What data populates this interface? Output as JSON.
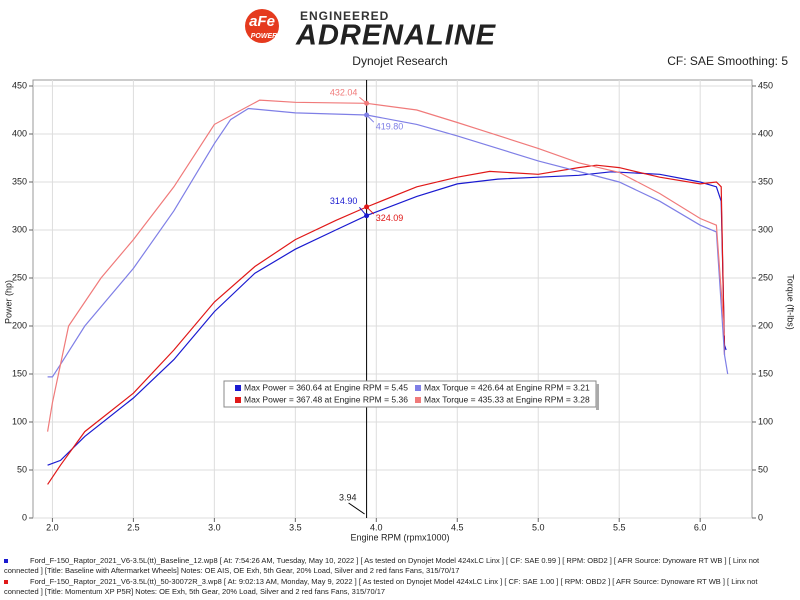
{
  "header": {
    "logo_top": "aFe",
    "logo_bottom": "POWER",
    "tagline": "ENGINEERED",
    "brand": "ADRENALINE",
    "watermark": "DYNOJET"
  },
  "chart_data": {
    "type": "line",
    "title": "Dynojet Research",
    "subtitle": "CF: SAE Smoothing: 5",
    "x_label": "Engine RPM (rpmx1000)",
    "y_label": "Power (hp)",
    "y2_label": "Torque (ft-lbs)",
    "xlim": [
      1.88,
      6.32
    ],
    "xticks": [
      {
        "value": 2,
        "label": "2.0"
      },
      {
        "value": 2.5,
        "label": "2.5"
      },
      {
        "value": 3,
        "label": "3.0"
      },
      {
        "value": 3.5,
        "label": "3.5"
      },
      {
        "value": 4,
        "label": "4.0"
      },
      {
        "value": 4.5,
        "label": "4.5"
      },
      {
        "value": 5,
        "label": "5.0"
      },
      {
        "value": 5.5,
        "label": "5.5"
      },
      {
        "value": 6,
        "label": "6.0"
      }
    ],
    "ylim": [
      0,
      450
    ],
    "yticks": [
      0,
      50,
      100,
      150,
      200,
      250,
      300,
      350,
      400,
      450
    ],
    "y2lim": [
      0,
      450
    ],
    "y2ticks": [
      0,
      50,
      100,
      150,
      200,
      250,
      300,
      350,
      400,
      450
    ],
    "grid": true,
    "series": [
      {
        "color": "#1a1ad0",
        "x": [
          1.97,
          2.05,
          2.2,
          2.5,
          2.75,
          3.0,
          3.25,
          3.5,
          3.75,
          3.94,
          4.25,
          4.5,
          4.75,
          5.0,
          5.25,
          5.45,
          5.75,
          6.0,
          6.1,
          6.13,
          6.15,
          6.16
        ],
        "values": [
          55,
          60,
          85,
          125,
          165,
          215,
          255,
          280,
          300,
          315,
          335,
          348,
          353,
          355,
          357,
          360.6,
          358,
          350,
          345,
          330,
          180,
          175
        ]
      },
      {
        "color": "#e01818",
        "x": [
          1.97,
          2.05,
          2.2,
          2.5,
          2.75,
          3.0,
          3.25,
          3.5,
          3.75,
          3.94,
          4.25,
          4.5,
          4.7,
          5.0,
          5.25,
          5.36,
          5.5,
          5.75,
          6.0,
          6.1,
          6.13,
          6.15
        ],
        "values": [
          35,
          55,
          90,
          130,
          175,
          225,
          262,
          290,
          310,
          324,
          345,
          355,
          361,
          358,
          365,
          367.5,
          365,
          355,
          348,
          350,
          345,
          170
        ]
      },
      {
        "color": "#7f7fe6",
        "axis": "y2",
        "x": [
          1.97,
          2.0,
          2.05,
          2.2,
          2.5,
          2.75,
          3.0,
          3.1,
          3.21,
          3.5,
          3.94,
          4.25,
          4.5,
          5.0,
          5.5,
          5.75,
          6.0,
          6.1,
          6.15,
          6.17
        ],
        "values": [
          147,
          147,
          160,
          200,
          260,
          320,
          390,
          415,
          426.6,
          422,
          419.8,
          410,
          398,
          372,
          350,
          330,
          305,
          298,
          170,
          150
        ]
      },
      {
        "color": "#f07a7a",
        "axis": "y2",
        "x": [
          1.97,
          2.0,
          2.1,
          2.3,
          2.5,
          2.75,
          3.0,
          3.28,
          3.5,
          3.94,
          4.25,
          4.5,
          5.0,
          5.25,
          5.5,
          5.75,
          6.0,
          6.1,
          6.15
        ],
        "values": [
          90,
          120,
          200,
          250,
          290,
          345,
          410,
          435.3,
          433,
          432,
          425,
          412,
          385,
          370,
          360,
          338,
          312,
          305,
          190
        ]
      }
    ],
    "cursor": {
      "x": 3.94,
      "labels": [
        {
          "series": 0,
          "value": 314.9,
          "label": "314.90"
        },
        {
          "series": 1,
          "value": 324.09,
          "label": "324.09"
        },
        {
          "series": 2,
          "value": 419.8,
          "label": "419.80"
        },
        {
          "series": 3,
          "value": 432.04,
          "label": "432.04"
        }
      ]
    },
    "legend": [
      {
        "text": "Max Power = 360.64 at Engine RPM = 5.45",
        "color": "#1a1ad0"
      },
      {
        "text": "Max Torque = 426.64 at Engine RPM = 3.21",
        "color": "#7f7fe6"
      },
      {
        "text": "Max Power = 367.48 at Engine RPM = 5.36",
        "color": "#e01818"
      },
      {
        "text": "Max Torque = 435.33 at Engine RPM = 3.28",
        "color": "#f07a7a"
      }
    ]
  },
  "footer": [
    {
      "color": "#1a1ad0",
      "text": "Ford_F-150_Raptor_2021_V6-3.5L(tt)_Baseline_12.wp8 [ At: 7:54:26 AM, Tuesday, May 10, 2022 ] [ As tested on Dynojet Model 424xLC Linx ] [ CF: SAE 0.99 ] [ RPM: OBD2 ] [ AFR Source: Dynoware RT WB ] [ Linx not connected ] [Title: Baseline with Aftermarket Wheels]  Notes: OE AIS, OE Exh, 5th Gear, 20% Load, Silver and 2 red fans Fans, 315/70/17"
    },
    {
      "color": "#e01818",
      "text": "Ford_F-150_Raptor_2021_V6-3.5L(tt)_50-30072R_3.wp8 [ At: 9:02:13 AM, Monday, May 9, 2022 ] [ As tested on Dynojet Model 424xLC Linx ] [ CF: SAE 1.00 ] [ RPM: OBD2 ] [ AFR Source: Dynoware RT WB ] [ Linx not connected ] [Title: Momentum XP P5R]  Notes: OE Exh, 5th Gear, 20% Load, Silver and 2 red fans Fans, 315/70/17"
    }
  ]
}
